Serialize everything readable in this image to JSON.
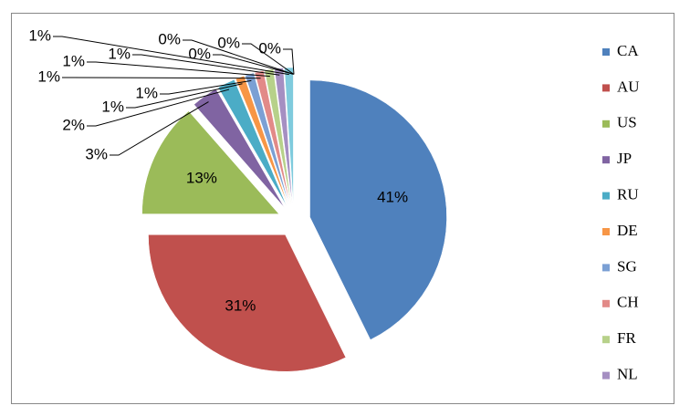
{
  "chart_data": {
    "type": "pie",
    "categories": [
      "CA",
      "AU",
      "US",
      "JP",
      "RU",
      "DE",
      "SG",
      "CH",
      "FR",
      "NL",
      null,
      null,
      null,
      null,
      null
    ],
    "values": [
      41,
      31,
      13,
      3,
      2,
      1,
      1,
      1,
      1,
      1,
      1,
      0,
      0,
      0,
      0
    ],
    "value_labels": [
      "41%",
      "31%",
      "13%",
      "3%",
      "2%",
      "1%",
      "1%",
      "1%",
      "1%",
      "1%",
      "1%",
      "0%",
      "0%",
      "0%",
      "0%"
    ],
    "colors": [
      "#4f81bd",
      "#c0504d",
      "#9bbb59",
      "#8064a2",
      "#4bacc6",
      "#f79646",
      "#7ba0d4",
      "#e28a88",
      "#b7d18a",
      "#a58fc2",
      "#7fcbdd",
      "#f9b884",
      "#2c4d75",
      "#772c2a",
      "#5f7530"
    ],
    "legend": "right"
  }
}
